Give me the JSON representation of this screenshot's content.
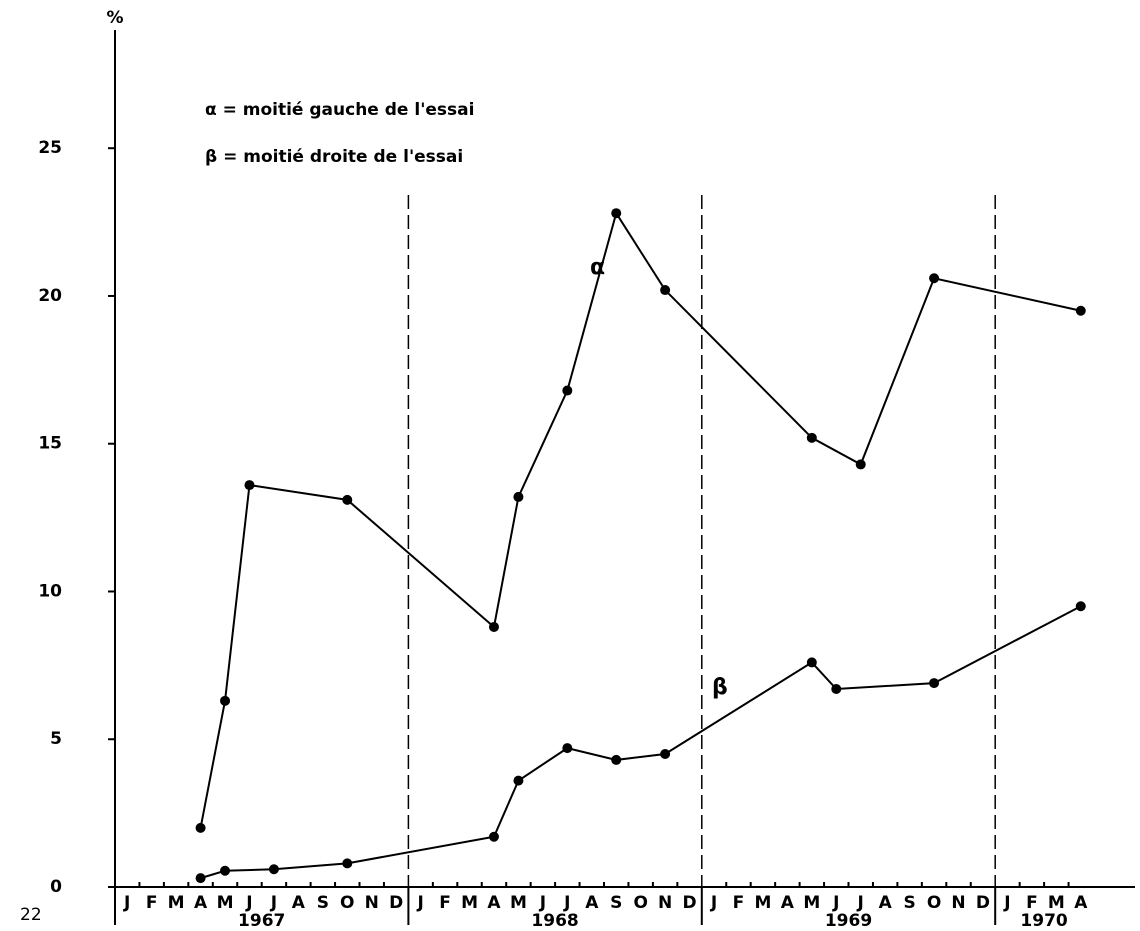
{
  "chart_data": {
    "type": "line",
    "y_label": "%",
    "page_number": "22",
    "legend": [
      "α = moitié gauche de l'essai",
      "β = moitié droite de l'essai"
    ],
    "categories": [
      "J",
      "F",
      "M",
      "A",
      "M",
      "J",
      "J",
      "A",
      "S",
      "O",
      "N",
      "D",
      "J",
      "F",
      "M",
      "A",
      "M",
      "J",
      "J",
      "A",
      "S",
      "O",
      "N",
      "D",
      "J",
      "F",
      "M",
      "A",
      "M",
      "J",
      "J",
      "A",
      "S",
      "O",
      "N",
      "D",
      "J",
      "F",
      "M",
      "A"
    ],
    "years": [
      "1967",
      "1968",
      "1969",
      "1970"
    ],
    "series": [
      {
        "name": "α",
        "color": "#000000",
        "values": [
          null,
          null,
          null,
          2.0,
          6.3,
          13.6,
          null,
          null,
          null,
          13.1,
          null,
          null,
          null,
          null,
          null,
          8.8,
          13.2,
          null,
          16.8,
          null,
          22.8,
          null,
          20.2,
          null,
          null,
          null,
          null,
          null,
          15.2,
          null,
          14.3,
          null,
          null,
          20.6,
          null,
          null,
          null,
          null,
          null,
          19.5
        ]
      },
      {
        "name": "β",
        "color": "#000000",
        "values": [
          null,
          null,
          null,
          0.3,
          0.55,
          null,
          0.6,
          null,
          null,
          0.8,
          null,
          null,
          null,
          null,
          null,
          1.7,
          3.6,
          null,
          4.7,
          null,
          4.3,
          null,
          4.5,
          null,
          null,
          null,
          null,
          null,
          7.6,
          6.7,
          null,
          null,
          null,
          6.9,
          null,
          null,
          null,
          null,
          null,
          9.5
        ]
      }
    ],
    "ylim": [
      0,
      29
    ],
    "yticks": [
      0,
      5,
      10,
      15,
      20,
      25
    ]
  }
}
